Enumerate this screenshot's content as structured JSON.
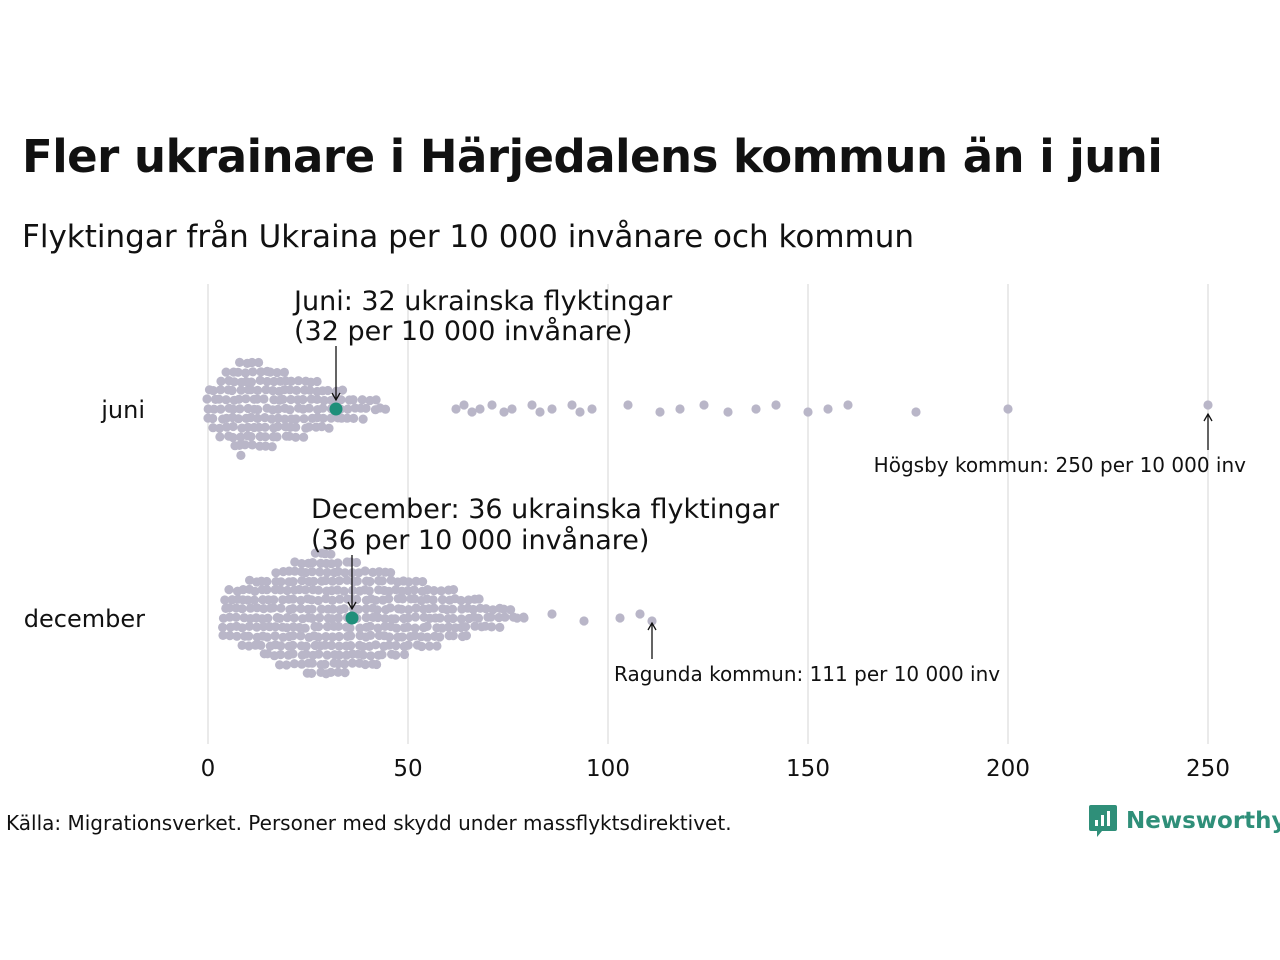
{
  "chart_data": {
    "type": "scatter",
    "title": "Fler ukrainare i Härjedalens kommun än i juni",
    "subtitle": "Flyktingar från Ukraina per 10 000 invånare och kommun",
    "x_ticks": [
      "0",
      "50",
      "100",
      "150",
      "200",
      "250"
    ],
    "xlim": [
      0,
      250
    ],
    "grid": "vertical",
    "groups": [
      {
        "name": "juni",
        "highlight": {
          "value": 32,
          "label_line1": "Juni: 32 ukrainska flyktingar",
          "label_line2": "(32 per 10 000 invånare)"
        },
        "max_label": "Högsby kommun: 250 per 10 000 inv",
        "outliers": [
          62,
          64,
          66,
          68,
          71,
          74,
          76,
          81,
          83,
          86,
          91,
          93,
          96,
          105,
          113,
          118,
          124,
          130,
          137,
          142,
          150,
          155,
          160,
          177,
          200,
          250
        ]
      },
      {
        "name": "december",
        "highlight": {
          "value": 36,
          "label_line1": "December: 36 ukrainska flyktingar",
          "label_line2": "(36 per 10 000 invånare)"
        },
        "max_label": "Ragunda kommun: 111 per 10 000 inv",
        "outliers": [
          79,
          86,
          94,
          103,
          108,
          111
        ]
      }
    ]
  },
  "colors": {
    "dot": "#b9b6c8",
    "highlight": "#1f8f7a",
    "grid": "#d6d6d6",
    "brand": "#2f8f79"
  },
  "source": "Källa: Migrationsverket. Personer med skydd under massflyktsdirektivet.",
  "logo": {
    "text": "Newsworthy",
    "icon": "newsworthy-logo-icon"
  }
}
